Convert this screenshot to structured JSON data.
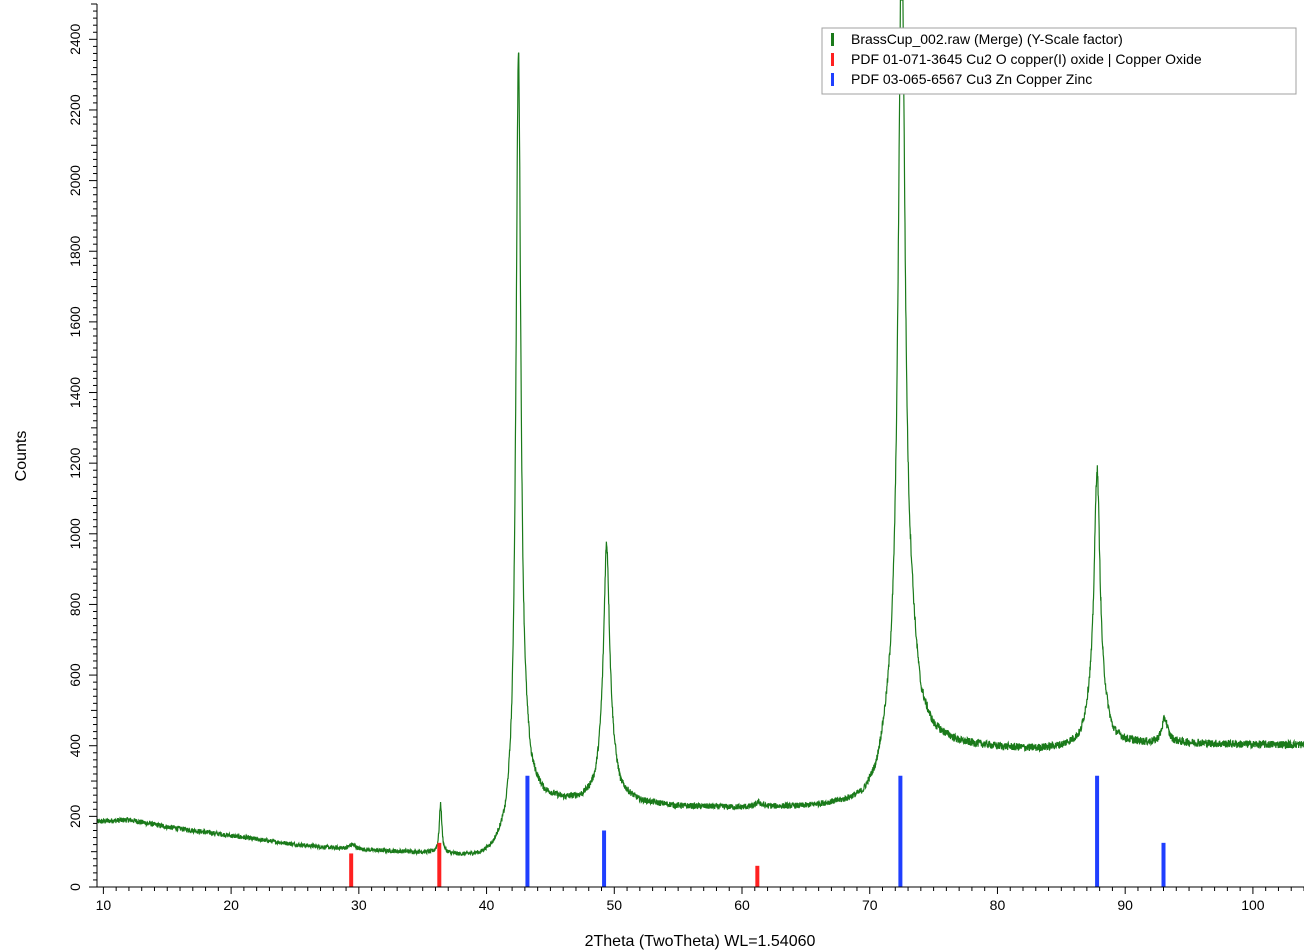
{
  "chart_data": {
    "type": "line",
    "title": "",
    "xlabel": "2Theta (TwoTheta) WL=1.54060",
    "ylabel": "Counts",
    "xlim": [
      9.5,
      104
    ],
    "ylim": [
      0,
      2500
    ],
    "x_ticks": [
      10,
      20,
      30,
      40,
      50,
      60,
      70,
      80,
      90,
      100
    ],
    "y_ticks": [
      0,
      200,
      400,
      600,
      800,
      1000,
      1200,
      1400,
      1600,
      1800,
      2000,
      2200,
      2400
    ],
    "grid": false,
    "legend_position": "top-right",
    "series": [
      {
        "name": "BrassCup_002.raw (Merge) (Y-Scale factor)",
        "kind": "line",
        "color": "#1a7a1a",
        "background": [
          [
            9.5,
            185
          ],
          [
            12,
            190
          ],
          [
            15,
            170
          ],
          [
            20,
            145
          ],
          [
            25,
            120
          ],
          [
            28,
            110
          ],
          [
            30,
            105
          ],
          [
            33,
            100
          ],
          [
            36,
            95
          ],
          [
            38,
            88
          ],
          [
            39.5,
            88
          ],
          [
            40.5,
            105
          ],
          [
            41.5,
            150
          ],
          [
            42,
            230
          ],
          [
            42.3,
            380
          ],
          [
            43,
            360
          ],
          [
            43.5,
            290
          ],
          [
            44.5,
            255
          ],
          [
            46,
            245
          ],
          [
            47.5,
            248
          ],
          [
            48.5,
            270
          ],
          [
            49,
            320
          ],
          [
            49.8,
            330
          ],
          [
            50.5,
            265
          ],
          [
            52,
            240
          ],
          [
            55,
            228
          ],
          [
            60,
            224
          ],
          [
            62,
            226
          ],
          [
            65,
            227
          ],
          [
            68,
            238
          ],
          [
            69.5,
            252
          ],
          [
            70.5,
            300
          ],
          [
            71.5,
            430
          ],
          [
            73.3,
            620
          ],
          [
            74,
            480
          ],
          [
            75,
            430
          ],
          [
            77,
            405
          ],
          [
            80,
            395
          ],
          [
            83,
            390
          ],
          [
            85,
            395
          ],
          [
            86.5,
            410
          ],
          [
            87.2,
            470
          ],
          [
            88.4,
            470
          ],
          [
            89,
            420
          ],
          [
            90,
            410
          ],
          [
            92,
            405
          ],
          [
            94,
            408
          ],
          [
            97,
            405
          ],
          [
            100,
            403
          ],
          [
            104,
            403
          ]
        ],
        "peaks": [
          {
            "x": 29.5,
            "height": 120,
            "width": 0.3
          },
          {
            "x": 36.4,
            "height": 232,
            "width": 0.12
          },
          {
            "x": 42.5,
            "height": 2360,
            "width": 0.22
          },
          {
            "x": 49.4,
            "height": 970,
            "width": 0.28
          },
          {
            "x": 61.3,
            "height": 238,
            "width": 0.25
          },
          {
            "x": 72.5,
            "height": 2700,
            "width": 0.32
          },
          {
            "x": 87.8,
            "height": 1180,
            "width": 0.28
          },
          {
            "x": 93.1,
            "height": 475,
            "width": 0.28
          }
        ]
      },
      {
        "name": "PDF 01-071-3645 Cu2 O copper(I) oxide | Copper Oxide",
        "kind": "stick",
        "color": "#ff2020",
        "x": [
          29.4,
          36.3,
          61.2
        ],
        "values": [
          95,
          125,
          60
        ]
      },
      {
        "name": "PDF 03-065-6567 Cu3 Zn Copper Zinc",
        "kind": "stick",
        "color": "#1f3fff",
        "x": [
          43.2,
          49.2,
          72.4,
          87.8,
          93.0
        ],
        "values": [
          315,
          160,
          315,
          315,
          125
        ]
      }
    ]
  }
}
